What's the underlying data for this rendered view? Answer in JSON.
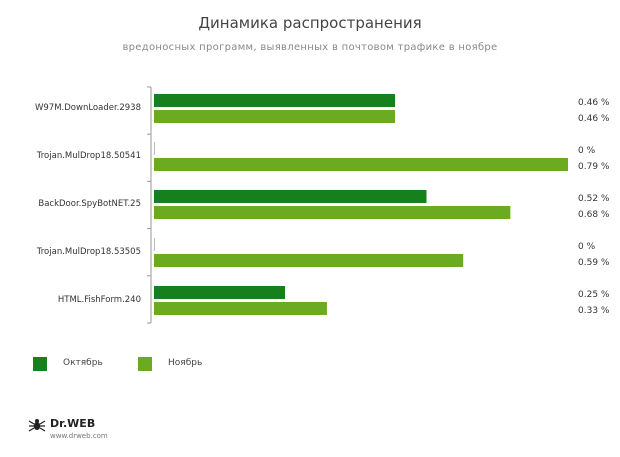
{
  "chart_data": {
    "type": "bar",
    "orientation": "horizontal",
    "title": "Динамика распространения",
    "subtitle": "вредоносных программ, выявленных в почтовом трафике в ноябре",
    "categories": [
      "W97M.DownLoader.2938",
      "Trojan.MulDrop18.50541",
      "BackDoor.SpyBotNET.25",
      "Trojan.MulDrop18.53505",
      "HTML.FishForm.240"
    ],
    "series": [
      {
        "name": "Октябрь",
        "color": "#16801c",
        "values": [
          0.46,
          0,
          0.52,
          0,
          0.25
        ],
        "labels": [
          "0.46 %",
          "0 %",
          "0.52 %",
          "0 %",
          "0.25 %"
        ]
      },
      {
        "name": "Ноябрь",
        "color": "#6aab21",
        "values": [
          0.46,
          0.79,
          0.68,
          0.59,
          0.33
        ],
        "labels": [
          "0.46 %",
          "0.79 %",
          "0.68 %",
          "0.59 %",
          "0.33 %"
        ]
      }
    ],
    "xlim": [
      0,
      0.79
    ],
    "grid": false,
    "legend_position": "bottom-left"
  },
  "legend": {
    "october": "Октябрь",
    "november": "Ноябрь"
  },
  "logo": {
    "brand": "Dr.WEB",
    "url": "www.drweb.com",
    "icon": "drweb-spider-icon"
  }
}
